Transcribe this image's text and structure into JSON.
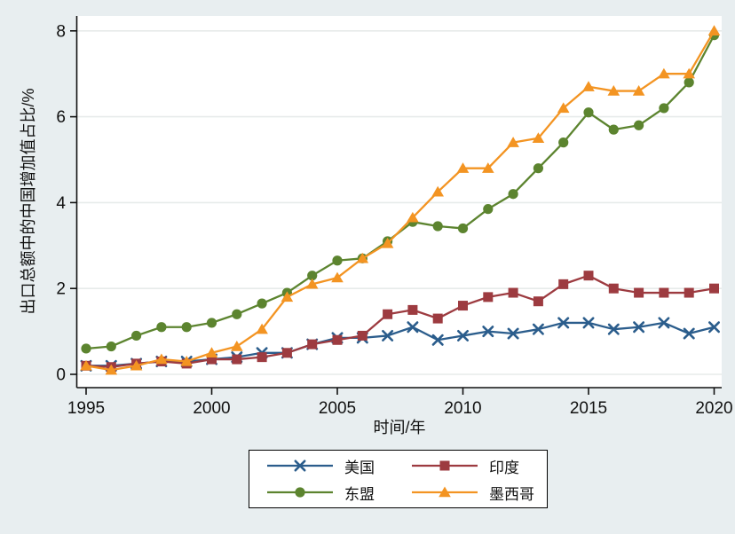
{
  "chart_data": {
    "type": "line",
    "title": "",
    "xlabel": "时间/年",
    "ylabel": "出口总额中的中国增加值占比/%",
    "xlim": [
      1995,
      2020
    ],
    "ylim": [
      0,
      8
    ],
    "xticks": [
      1995,
      2000,
      2005,
      2010,
      2015,
      2020
    ],
    "yticks": [
      0,
      2,
      4,
      6,
      8
    ],
    "grid": "horizontal",
    "legend_position": "bottom-center-boxed",
    "x": [
      1995,
      1996,
      1997,
      1998,
      1999,
      2000,
      2001,
      2002,
      2003,
      2004,
      2005,
      2006,
      2007,
      2008,
      2009,
      2010,
      2011,
      2012,
      2013,
      2014,
      2015,
      2016,
      2017,
      2018,
      2019,
      2020
    ],
    "series": [
      {
        "key": "us",
        "name": "美国",
        "color": "#2b5d8c",
        "marker": "x",
        "values": [
          0.2,
          0.2,
          0.25,
          0.3,
          0.3,
          0.35,
          0.4,
          0.5,
          0.5,
          0.7,
          0.85,
          0.85,
          0.9,
          1.1,
          0.8,
          0.9,
          1.0,
          0.95,
          1.05,
          1.2,
          1.2,
          1.05,
          1.1,
          1.2,
          0.95,
          1.1
        ]
      },
      {
        "key": "india",
        "name": "印度",
        "color": "#9d3b40",
        "marker": "square",
        "values": [
          0.2,
          0.17,
          0.25,
          0.3,
          0.25,
          0.35,
          0.35,
          0.4,
          0.5,
          0.7,
          0.8,
          0.9,
          1.4,
          1.5,
          1.3,
          1.6,
          1.8,
          1.9,
          1.7,
          2.1,
          2.3,
          2.0,
          1.9,
          1.9,
          1.9,
          2.0
        ]
      },
      {
        "key": "asean",
        "name": "东盟",
        "color": "#5c842f",
        "marker": "circle",
        "values": [
          0.6,
          0.65,
          0.9,
          1.1,
          1.1,
          1.2,
          1.4,
          1.65,
          1.9,
          2.3,
          2.65,
          2.7,
          3.1,
          3.55,
          3.45,
          3.4,
          3.85,
          4.2,
          4.8,
          5.4,
          6.1,
          5.7,
          5.8,
          6.2,
          6.8,
          7.9
        ]
      },
      {
        "key": "mexico",
        "name": "墨西哥",
        "color": "#f39422",
        "marker": "triangle",
        "values": [
          0.2,
          0.1,
          0.2,
          0.35,
          0.3,
          0.5,
          0.65,
          1.05,
          1.8,
          2.1,
          2.25,
          2.7,
          3.05,
          3.65,
          4.25,
          4.8,
          4.8,
          5.4,
          5.5,
          6.2,
          6.7,
          6.6,
          6.6,
          7.0,
          7.0,
          8.0
        ]
      }
    ]
  },
  "colors": {
    "background": "#e8eef0",
    "plot_background": "#ffffff",
    "gridline": "#e7ebea",
    "axis": "#111111"
  }
}
